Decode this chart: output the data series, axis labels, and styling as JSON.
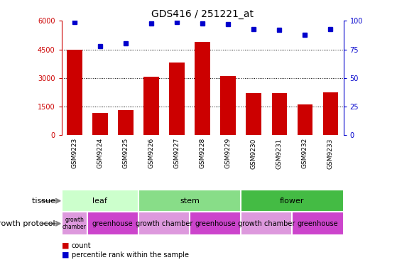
{
  "title": "GDS416 / 251221_at",
  "samples": [
    "GSM9223",
    "GSM9224",
    "GSM9225",
    "GSM9226",
    "GSM9227",
    "GSM9228",
    "GSM9229",
    "GSM9230",
    "GSM9231",
    "GSM9232",
    "GSM9233"
  ],
  "counts": [
    4500,
    1150,
    1300,
    3050,
    3800,
    4900,
    3100,
    2200,
    2200,
    1600,
    2250
  ],
  "percentiles": [
    99,
    78,
    80,
    98,
    99,
    98,
    97,
    93,
    92,
    88,
    93
  ],
  "bar_color": "#cc0000",
  "dot_color": "#0000cc",
  "ylim_left": [
    0,
    6000
  ],
  "ylim_right": [
    0,
    100
  ],
  "yticks_left": [
    0,
    1500,
    3000,
    4500,
    6000
  ],
  "yticks_right": [
    0,
    25,
    50,
    75,
    100
  ],
  "gridline_values": [
    1500,
    3000,
    4500
  ],
  "tissue_groups": [
    {
      "label": "leaf",
      "start": 0,
      "end": 3,
      "color": "#ccffcc"
    },
    {
      "label": "stem",
      "start": 3,
      "end": 7,
      "color": "#88dd88"
    },
    {
      "label": "flower",
      "start": 7,
      "end": 11,
      "color": "#44bb44"
    }
  ],
  "growth_protocol_groups": [
    {
      "label": "growth\nchamber",
      "start": 0,
      "end": 1,
      "color": "#dd99dd"
    },
    {
      "label": "greenhouse",
      "start": 1,
      "end": 3,
      "color": "#cc44cc"
    },
    {
      "label": "growth chamber",
      "start": 3,
      "end": 5,
      "color": "#dd99dd"
    },
    {
      "label": "greenhouse",
      "start": 5,
      "end": 7,
      "color": "#cc44cc"
    },
    {
      "label": "growth chamber",
      "start": 7,
      "end": 9,
      "color": "#dd99dd"
    },
    {
      "label": "greenhouse",
      "start": 9,
      "end": 11,
      "color": "#cc44cc"
    }
  ],
  "xtick_bg_color": "#cccccc",
  "background_color": "#ffffff",
  "label_tissue": "tissue",
  "label_protocol": "growth protocol",
  "legend_count": "count",
  "legend_percentile": "percentile rank within the sample",
  "group_boundaries": [
    3,
    7
  ]
}
